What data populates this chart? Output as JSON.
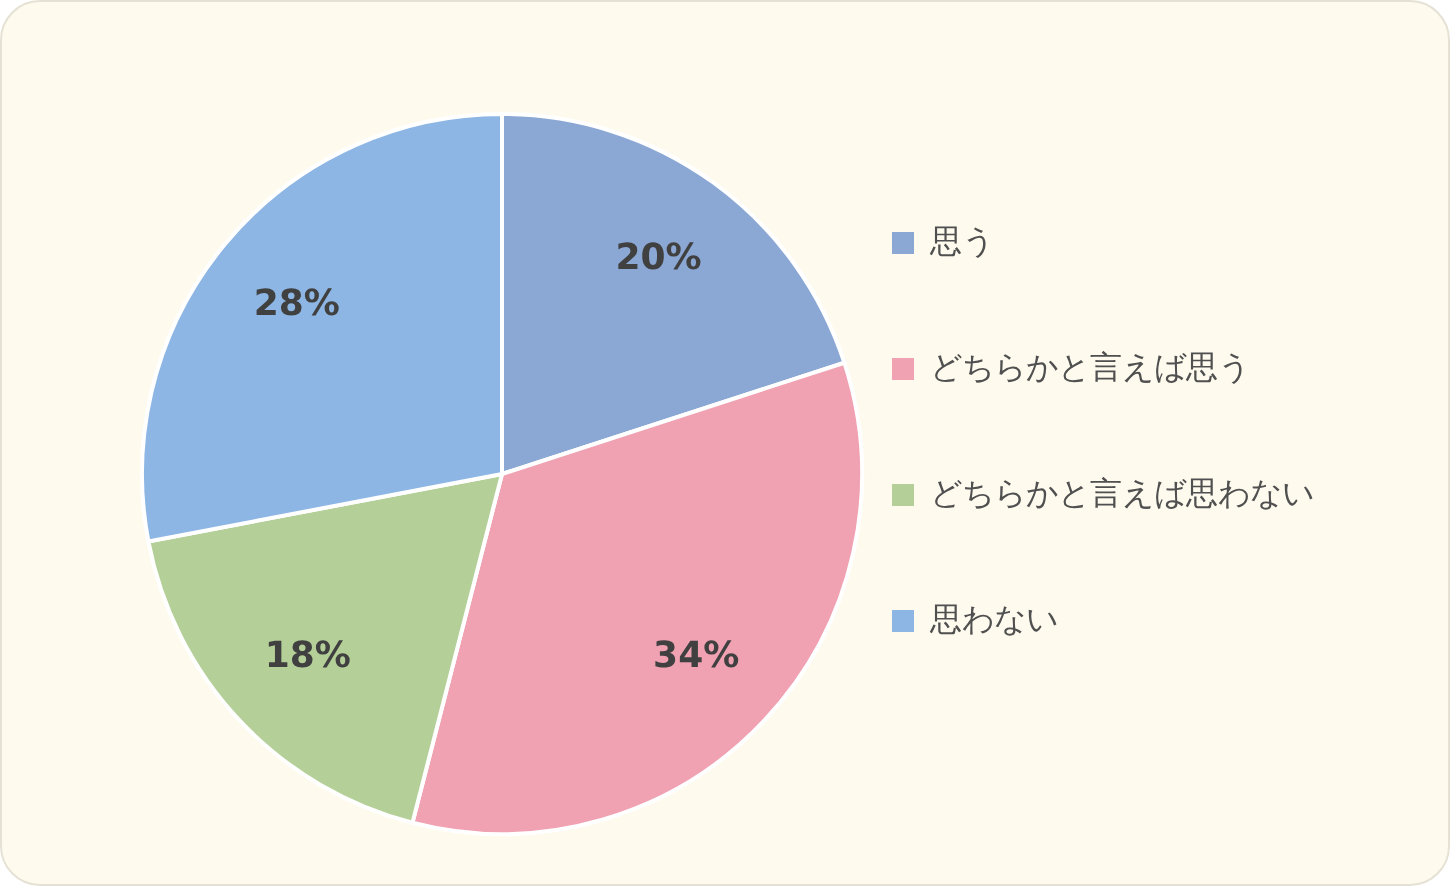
{
  "chart_data": {
    "type": "pie",
    "categories": [
      "思う",
      "どちらかと言えば思う",
      "どちらかと言えば思わない",
      "思わない"
    ],
    "values": [
      20,
      34,
      18,
      28
    ],
    "value_labels": [
      "20%",
      "34%",
      "18%",
      "28%"
    ],
    "colors": [
      "#8ba8d5",
      "#f0a1b2",
      "#b5cf98",
      "#8db6e4"
    ],
    "legend": "right"
  }
}
